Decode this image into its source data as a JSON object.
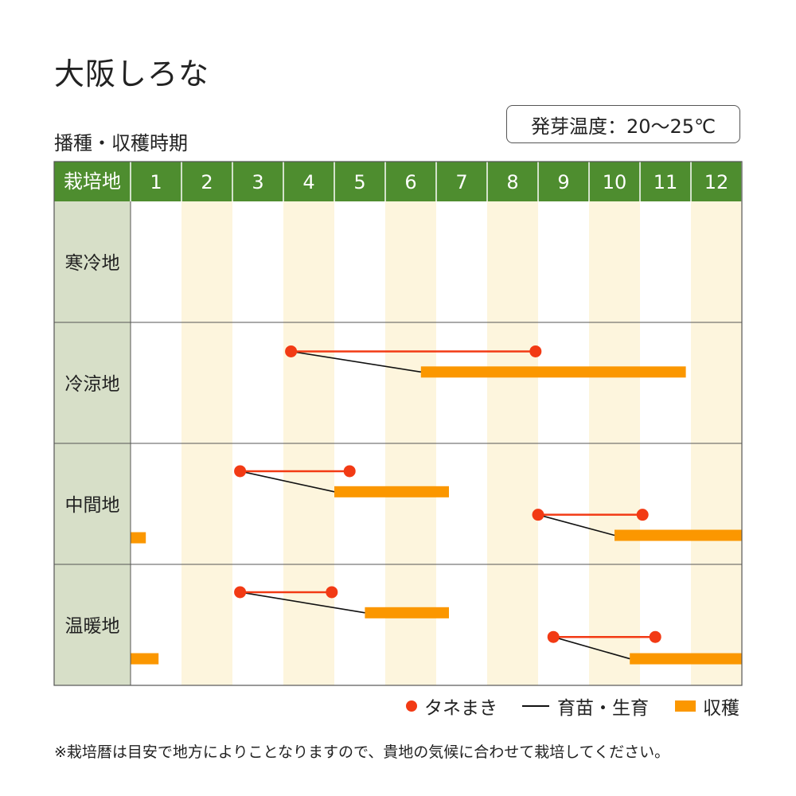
{
  "title": "大阪しろな",
  "subtitle": "播種・収穫時期",
  "germination": "発芽温度：20〜25℃",
  "legend": {
    "sowing": "タネまき",
    "nursery": "育苗・生育",
    "harvest": "収穫"
  },
  "footnote": "※栽培暦は目安で地方によりことなりますので、貴地の気候に合わせて栽培してください。",
  "colors": {
    "header_green": "#4e8d2f",
    "region_col_bg": "#d7dfc8",
    "alt_month_bg": "#fdf5dd",
    "sowing_red": "#f23a14",
    "harvest_orange": "#fb9700",
    "growth_line": "#111111"
  },
  "chart_data": {
    "type": "table",
    "header_label": "栽培地",
    "months": [
      "1",
      "2",
      "3",
      "4",
      "5",
      "6",
      "7",
      "8",
      "9",
      "10",
      "11",
      "12"
    ],
    "regions": [
      {
        "name": "寒冷地",
        "schedules": []
      },
      {
        "name": "冷涼地",
        "schedules": [
          {
            "sowing": [
              4.15,
              8.95
            ],
            "harvest": [
              6.7,
              11.9
            ]
          }
        ]
      },
      {
        "name": "中間地",
        "schedules": [
          {
            "sowing": [
              3.15,
              5.3
            ],
            "harvest": [
              5.0,
              7.25
            ]
          },
          {
            "sowing": [
              9.0,
              11.05
            ],
            "harvest": [
              10.5,
              13.0
            ]
          },
          {
            "harvest": [
              1.0,
              1.3
            ]
          }
        ]
      },
      {
        "name": "温暖地",
        "schedules": [
          {
            "sowing": [
              3.15,
              4.95
            ],
            "harvest": [
              5.6,
              7.25
            ]
          },
          {
            "sowing": [
              9.3,
              11.3
            ],
            "harvest": [
              10.8,
              13.0
            ]
          },
          {
            "harvest": [
              1.0,
              1.55
            ]
          }
        ]
      }
    ]
  }
}
